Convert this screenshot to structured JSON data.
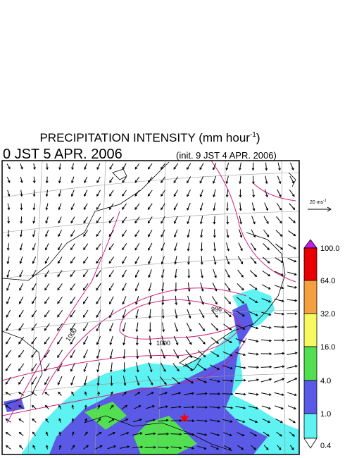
{
  "header": {
    "title": {
      "main": "PRECIPITATION INTENSITY (mm hour",
      "superscript": "-1",
      "close": ")"
    },
    "valid_time": "0 JST 5 APR. 2006",
    "init_time": "(init. 9 JST 4 APR. 2006)"
  },
  "wind_legend": {
    "unit": "20 ms",
    "superscript": "-1"
  },
  "colorbar": {
    "labels": [
      "100.0",
      "64.0",
      "32.0",
      "16.0",
      "4.0",
      "1.0",
      "0.4"
    ]
  },
  "contour_labels": [
    "1000",
    "996",
    "1000"
  ]
}
